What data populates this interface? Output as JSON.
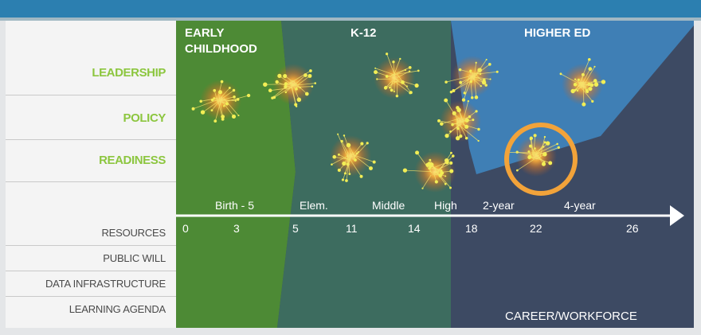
{
  "zones": {
    "early_line1": "EARLY",
    "early_line2": "CHILDHOOD",
    "k12": "K-12",
    "higher_ed": "HIGHER ED",
    "career": "CAREER/WORKFORCE"
  },
  "rows": {
    "leadership": "LEADERSHIP",
    "policy": "POLICY",
    "readiness": "READINESS",
    "resources": "RESOURCES",
    "public_will": "PUBLIC WILL",
    "data_infrastructure": "DATA INFRASTRUCTURE",
    "learning_agenda": "LEARNING AGENDA"
  },
  "timeline": {
    "stages": [
      "Birth - 5",
      "Elem.",
      "Middle",
      "High",
      "2-year",
      "4-year"
    ],
    "ages": [
      "0",
      "3",
      "5",
      "11",
      "14",
      "18",
      "22",
      "26"
    ]
  },
  "colors": {
    "early_childhood": "#4d8a35",
    "k12": "#3d6c5f",
    "higher_ed": "#3f7fb5",
    "career": "#3d4a63",
    "highlight_ring": "#f2a33a",
    "row_accent": "#8cc63f",
    "top_band": "#2c7fb0"
  }
}
